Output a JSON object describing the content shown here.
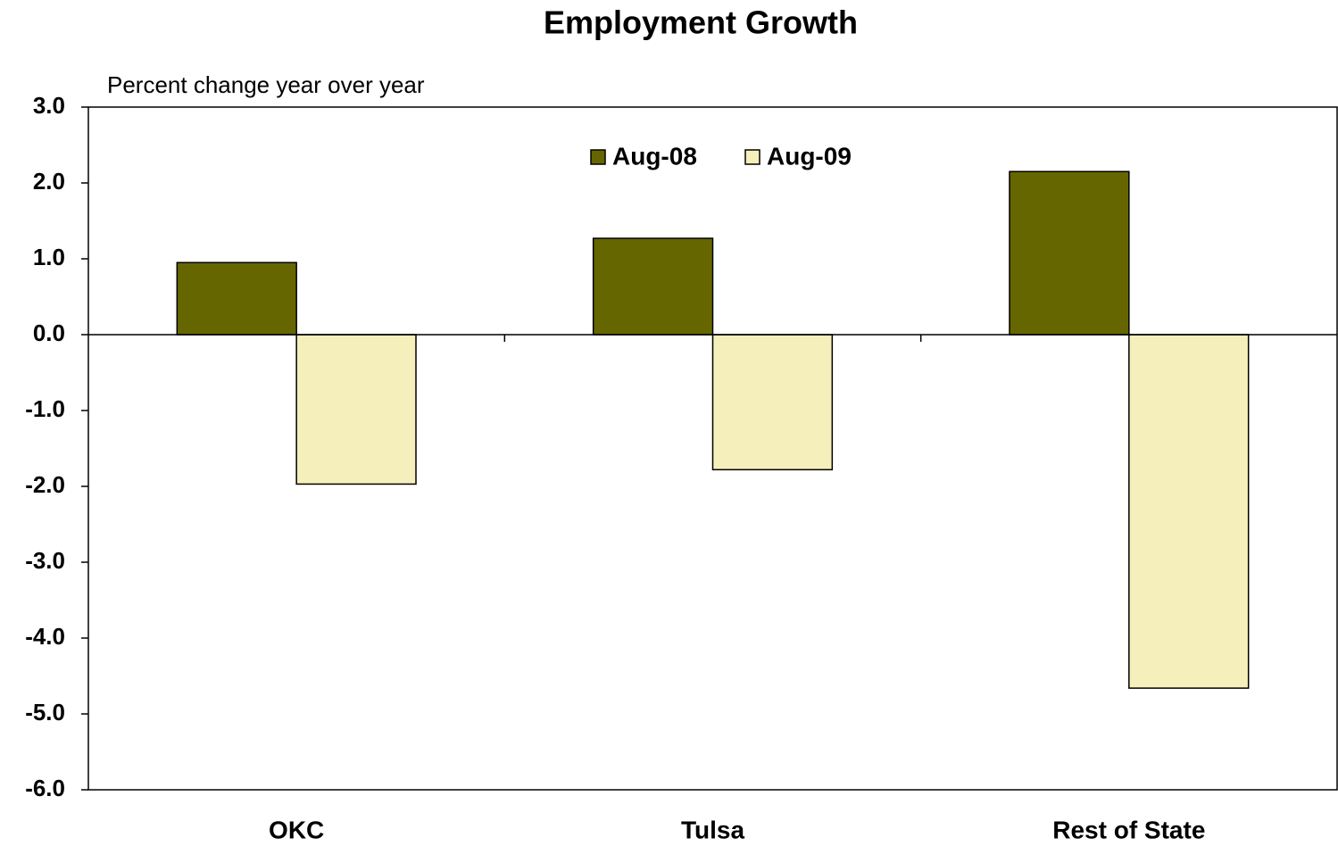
{
  "chart_data": {
    "type": "bar",
    "title": "Employment Growth",
    "y_axis_label": "Percent change year over year",
    "categories": [
      "OKC",
      "Tulsa",
      "Rest of State"
    ],
    "series": [
      {
        "name": "Aug-08",
        "color": "#666600",
        "values": [
          0.95,
          1.27,
          2.15
        ]
      },
      {
        "name": "Aug-09",
        "color": "#f5f0bb",
        "values": [
          -1.97,
          -1.78,
          -4.66
        ]
      }
    ],
    "ylim": [
      -6,
      3
    ],
    "yticks": [
      {
        "value": -6,
        "label": "-6.0"
      },
      {
        "value": -5,
        "label": "-5.0"
      },
      {
        "value": -4,
        "label": "-4.0"
      },
      {
        "value": -3,
        "label": "-3.0"
      },
      {
        "value": -2,
        "label": "-2.0"
      },
      {
        "value": -1,
        "label": "-1.0"
      },
      {
        "value": 0,
        "label": "0.0"
      },
      {
        "value": 1,
        "label": "1.0"
      },
      {
        "value": 2,
        "label": "2.0"
      },
      {
        "value": 3,
        "label": "3.0"
      }
    ],
    "legend": "top"
  }
}
